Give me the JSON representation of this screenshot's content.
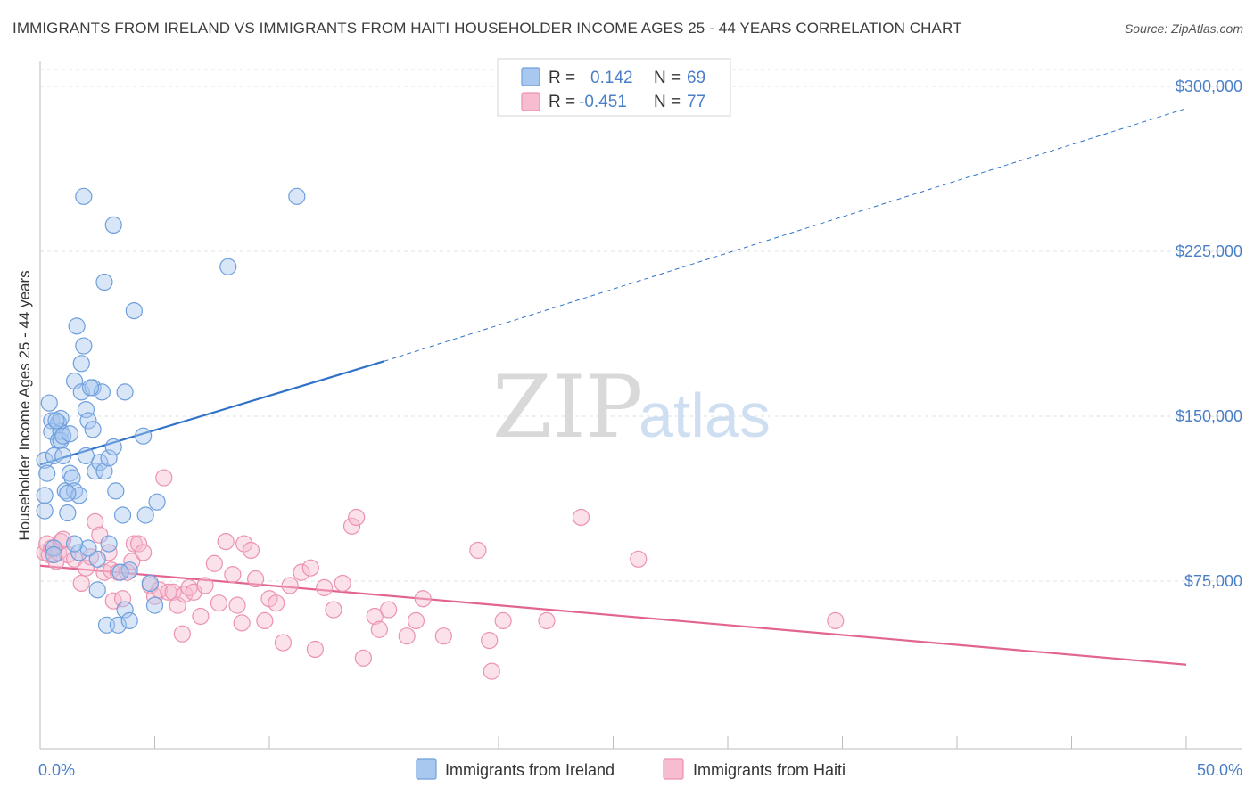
{
  "title": "IMMIGRANTS FROM IRELAND VS IMMIGRANTS FROM HAITI HOUSEHOLDER INCOME AGES 25 - 44 YEARS CORRELATION CHART",
  "source": "Source: ZipAtlas.com",
  "watermark": {
    "zip": "ZIP",
    "atlas": "atlas"
  },
  "colors": {
    "ireland_fill": "#a9c8f0",
    "ireland_stroke": "#6f9fdc",
    "ireland_line": "#2f73c9",
    "haiti_fill": "#f7bcd0",
    "haiti_stroke": "#ec92b1",
    "haiti_line": "#e26491",
    "value_text": "#4a7fc8",
    "grid": "#e2e2e2"
  },
  "legend": {
    "rows": [
      {
        "r_label": "R =",
        "r_value": "0.142",
        "n_label": "N =",
        "n_value": "69"
      },
      {
        "r_label": "R =",
        "r_value": "-0.451",
        "n_label": "N =",
        "n_value": "77"
      }
    ]
  },
  "chart_data": {
    "type": "scatter",
    "xlabel": "",
    "ylabel": "Householder Income Ages 25 - 44 years",
    "xlim": [
      0,
      50
    ],
    "ylim": [
      15000,
      310000
    ],
    "x_tick_labels": [
      {
        "value": 0,
        "label": "0.0%"
      },
      {
        "value": 50,
        "label": "50.0%"
      }
    ],
    "x_minor_ticks": [
      0,
      5,
      10,
      15,
      20,
      25,
      30,
      35,
      40,
      45,
      50
    ],
    "y_ticks": [
      {
        "value": 75000,
        "label": "$75,000"
      },
      {
        "value": 150000,
        "label": "$150,000"
      },
      {
        "value": 225000,
        "label": "$225,000"
      },
      {
        "value": 300000,
        "label": "$300,000"
      }
    ],
    "grid": true,
    "legend_position": "top-center",
    "series": [
      {
        "name": "Immigrants from Ireland",
        "r": 0.142,
        "n": 69,
        "trend": {
          "x0": 0,
          "y0": 128000,
          "x1": 15,
          "y1": 175000,
          "x_dashed_end": 50,
          "y_dashed_end": 290000
        },
        "points": [
          [
            0.2,
            130000
          ],
          [
            0.3,
            124000
          ],
          [
            0.2,
            114000
          ],
          [
            0.2,
            107000
          ],
          [
            0.4,
            156000
          ],
          [
            0.5,
            148000
          ],
          [
            0.5,
            143000
          ],
          [
            0.6,
            132000
          ],
          [
            0.6,
            90000
          ],
          [
            0.6,
            87000
          ],
          [
            0.8,
            147000
          ],
          [
            0.8,
            139000
          ],
          [
            0.9,
            143000
          ],
          [
            0.9,
            149000
          ],
          [
            0.9,
            139000
          ],
          [
            1.0,
            141000
          ],
          [
            1.0,
            132000
          ],
          [
            1.1,
            116000
          ],
          [
            1.2,
            106000
          ],
          [
            1.3,
            142000
          ],
          [
            1.3,
            124000
          ],
          [
            1.4,
            122000
          ],
          [
            1.5,
            116000
          ],
          [
            1.5,
            166000
          ],
          [
            1.6,
            191000
          ],
          [
            1.7,
            114000
          ],
          [
            1.7,
            88000
          ],
          [
            1.8,
            161000
          ],
          [
            1.8,
            174000
          ],
          [
            1.9,
            250000
          ],
          [
            1.9,
            182000
          ],
          [
            2.0,
            153000
          ],
          [
            2.0,
            132000
          ],
          [
            2.1,
            148000
          ],
          [
            2.3,
            144000
          ],
          [
            2.3,
            163000
          ],
          [
            2.4,
            125000
          ],
          [
            2.5,
            71000
          ],
          [
            2.5,
            85000
          ],
          [
            2.6,
            129000
          ],
          [
            2.7,
            161000
          ],
          [
            2.8,
            211000
          ],
          [
            2.8,
            125000
          ],
          [
            2.9,
            55000
          ],
          [
            3.0,
            131000
          ],
          [
            3.0,
            92000
          ],
          [
            3.2,
            136000
          ],
          [
            3.2,
            237000
          ],
          [
            3.3,
            116000
          ],
          [
            3.4,
            55000
          ],
          [
            3.6,
            105000
          ],
          [
            3.7,
            161000
          ],
          [
            3.7,
            62000
          ],
          [
            3.9,
            80000
          ],
          [
            3.9,
            57000
          ],
          [
            4.1,
            198000
          ],
          [
            4.5,
            141000
          ],
          [
            4.6,
            105000
          ],
          [
            4.8,
            74000
          ],
          [
            5.0,
            64000
          ],
          [
            5.1,
            111000
          ],
          [
            8.2,
            218000
          ],
          [
            11.2,
            250000
          ],
          [
            2.1,
            90000
          ],
          [
            1.2,
            115000
          ],
          [
            0.7,
            148000
          ],
          [
            1.5,
            92000
          ],
          [
            3.5,
            79000
          ],
          [
            2.2,
            163000
          ]
        ]
      },
      {
        "name": "Immigrants from Haiti",
        "r": -0.451,
        "n": 77,
        "trend": {
          "x0": 0,
          "y0": 82000,
          "x1": 50,
          "y1": 37000
        },
        "points": [
          [
            0.2,
            88000
          ],
          [
            0.3,
            92000
          ],
          [
            0.4,
            87000
          ],
          [
            0.5,
            90000
          ],
          [
            0.7,
            84000
          ],
          [
            0.8,
            88000
          ],
          [
            0.9,
            93000
          ],
          [
            1.0,
            94000
          ],
          [
            1.2,
            87000
          ],
          [
            1.5,
            85000
          ],
          [
            1.8,
            74000
          ],
          [
            2.0,
            81000
          ],
          [
            2.2,
            86000
          ],
          [
            2.4,
            102000
          ],
          [
            2.6,
            96000
          ],
          [
            2.8,
            79000
          ],
          [
            3.0,
            88000
          ],
          [
            3.1,
            80000
          ],
          [
            3.2,
            66000
          ],
          [
            3.4,
            79000
          ],
          [
            3.6,
            67000
          ],
          [
            3.8,
            79000
          ],
          [
            4.0,
            84000
          ],
          [
            4.1,
            92000
          ],
          [
            4.3,
            92000
          ],
          [
            4.5,
            88000
          ],
          [
            4.8,
            73000
          ],
          [
            5.0,
            68000
          ],
          [
            5.2,
            71000
          ],
          [
            5.4,
            122000
          ],
          [
            5.6,
            70000
          ],
          [
            5.8,
            70000
          ],
          [
            6.0,
            64000
          ],
          [
            6.2,
            51000
          ],
          [
            6.3,
            69000
          ],
          [
            6.5,
            72000
          ],
          [
            6.7,
            70000
          ],
          [
            7.0,
            59000
          ],
          [
            7.2,
            73000
          ],
          [
            7.6,
            83000
          ],
          [
            7.8,
            65000
          ],
          [
            8.1,
            93000
          ],
          [
            8.4,
            78000
          ],
          [
            8.6,
            64000
          ],
          [
            8.8,
            56000
          ],
          [
            8.9,
            92000
          ],
          [
            9.2,
            89000
          ],
          [
            9.4,
            76000
          ],
          [
            9.8,
            57000
          ],
          [
            10.0,
            67000
          ],
          [
            10.3,
            65000
          ],
          [
            10.6,
            47000
          ],
          [
            10.9,
            73000
          ],
          [
            11.4,
            79000
          ],
          [
            11.8,
            81000
          ],
          [
            12.0,
            44000
          ],
          [
            12.4,
            72000
          ],
          [
            12.8,
            62000
          ],
          [
            13.2,
            74000
          ],
          [
            13.6,
            100000
          ],
          [
            13.8,
            104000
          ],
          [
            14.1,
            40000
          ],
          [
            14.6,
            59000
          ],
          [
            14.8,
            53000
          ],
          [
            15.2,
            62000
          ],
          [
            16.0,
            50000
          ],
          [
            16.4,
            57000
          ],
          [
            16.7,
            67000
          ],
          [
            17.6,
            50000
          ],
          [
            19.1,
            89000
          ],
          [
            19.6,
            48000
          ],
          [
            19.7,
            34000
          ],
          [
            20.2,
            57000
          ],
          [
            22.1,
            57000
          ],
          [
            23.6,
            104000
          ],
          [
            26.1,
            85000
          ],
          [
            34.7,
            57000
          ]
        ]
      }
    ],
    "bottom_legend": [
      "Immigrants from Ireland",
      "Immigrants from Haiti"
    ]
  }
}
